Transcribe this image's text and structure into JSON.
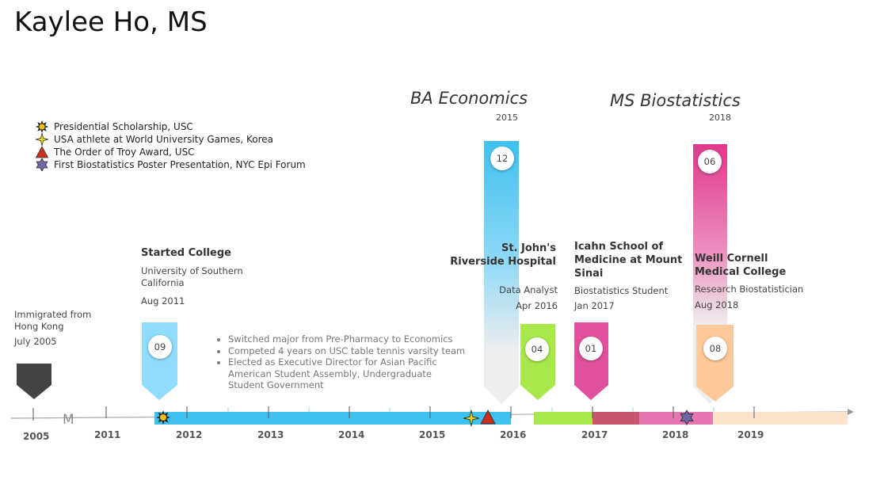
{
  "page_title": "Kaylee Ho, MS",
  "legend": [
    {
      "icon": "sun-icon",
      "label": "Presidential Scholarship, USC"
    },
    {
      "icon": "four-point-star-icon",
      "label": "USA athlete at World University Games, Korea"
    },
    {
      "icon": "triangle-icon",
      "label": "The Order of Troy Award, USC"
    },
    {
      "icon": "hexagram-icon",
      "label": "First Biostatistics Poster Presentation, NYC Epi Forum"
    }
  ],
  "degrees": [
    {
      "title": "BA Economics",
      "year": "2015",
      "badge": "12",
      "color": "#3ec1ef"
    },
    {
      "title": "MS Biostatistics",
      "year": "2018",
      "badge": "06",
      "color": "#e0388a"
    }
  ],
  "events": {
    "immigrated": {
      "title": "Immigrated from Hong Kong",
      "date": "July 2005"
    },
    "college": {
      "heading": "Started College",
      "place": "University of Southern California",
      "date": "Aug 2011",
      "badge": "09",
      "color": "#8fdcfb"
    },
    "college_bullets": [
      "Switched major from Pre-Pharmacy to Economics",
      "Competed 4 years on USC table tennis varsity team",
      "Elected as Executive Director for Asian Pacific American Student Assembly, Undergraduate Student Government"
    ],
    "stjohns": {
      "heading": "St. John's Riverside Hospital",
      "role": "Data Analyst",
      "date": "Apr 2016",
      "badge": "04",
      "color": "#a8e84b"
    },
    "icahn": {
      "heading": "Icahn School of Medicine at Mount Sinai",
      "role": "Biostatistics Student",
      "date": "Jan 2017",
      "badge": "01",
      "color": "#e0509c"
    },
    "weill": {
      "heading": "Weill Cornell Medical College",
      "role": "Research Biostatistician",
      "date": "Aug 2018",
      "badge": "08",
      "color": "#fcc99b"
    }
  },
  "axis": {
    "years": [
      "2005",
      "2011",
      "2012",
      "2013",
      "2014",
      "2015",
      "2016",
      "2017",
      "2018",
      "2019"
    ],
    "break_symbol": "M"
  },
  "colors": {
    "usc_bar": "#3ec1ef",
    "stjohns_bar": "#a8e84b",
    "icahn_bar": "#c8566d",
    "mssm_bar": "#e576b0",
    "weill_bar": "#fde2cc",
    "gray_arrow": "#eeeeee",
    "dark_pointer": "#444444"
  }
}
